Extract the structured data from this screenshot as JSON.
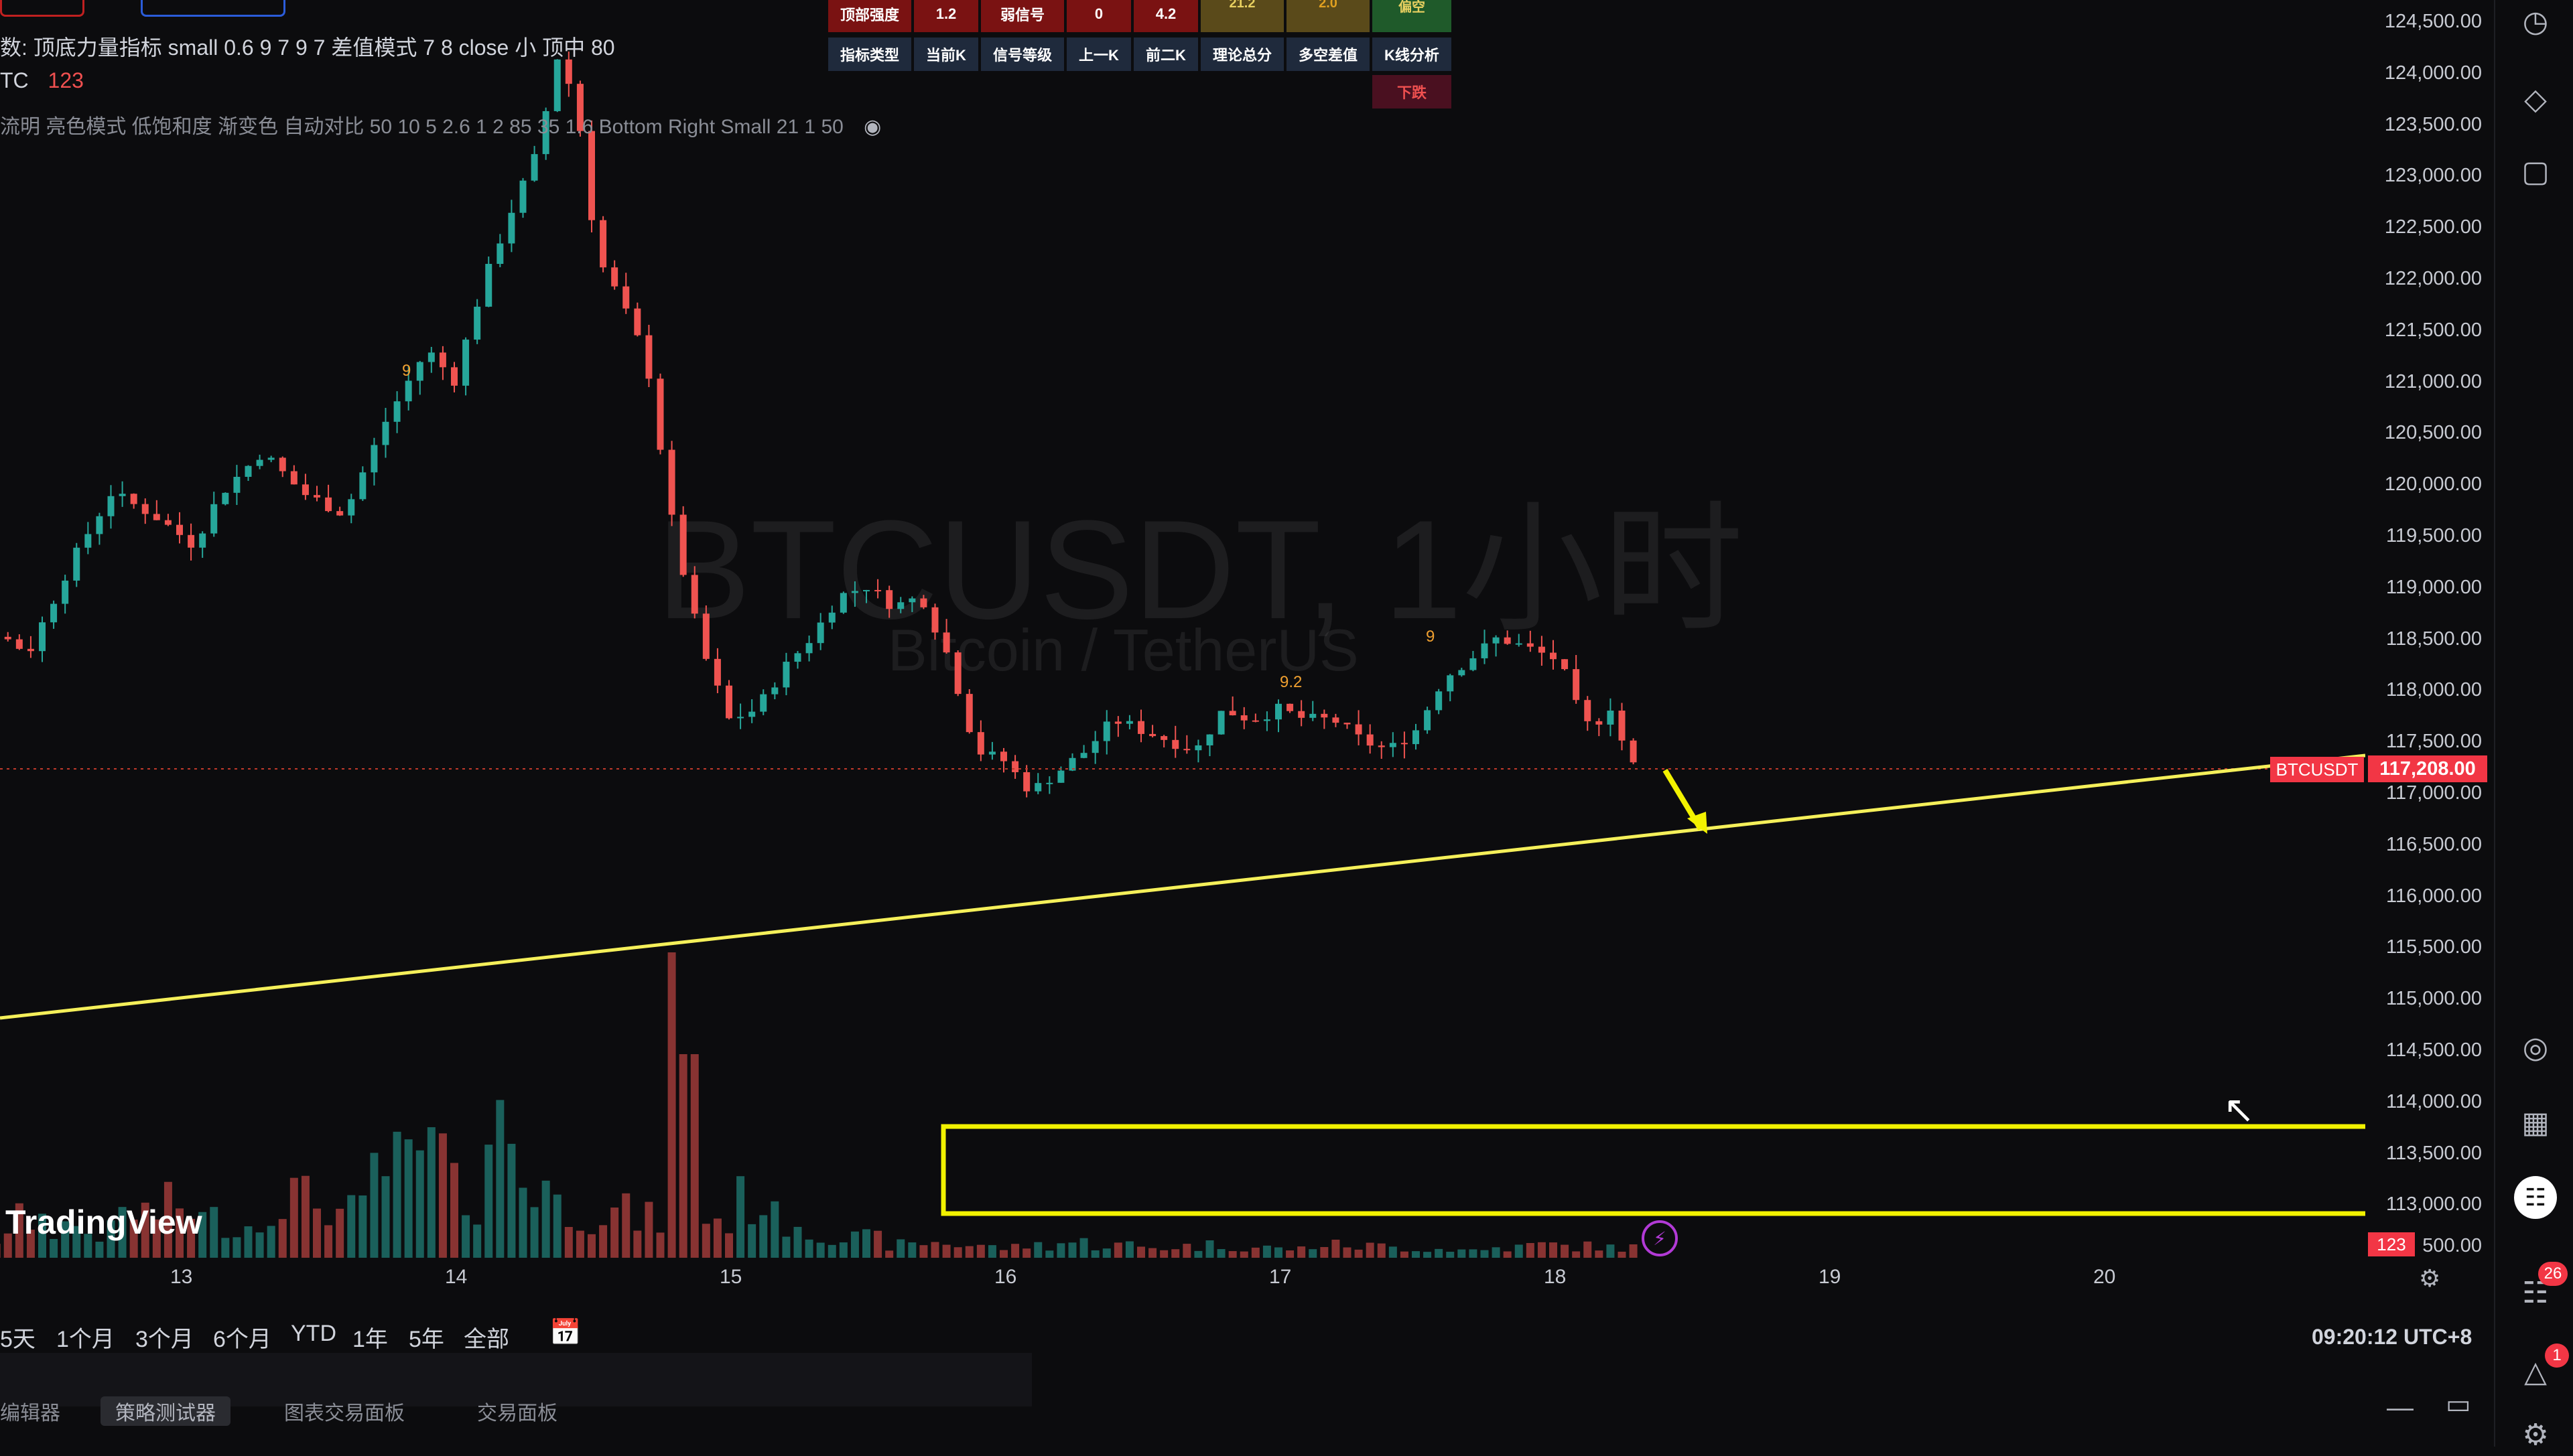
{
  "symbol": {
    "name": "BTCUSDT",
    "interval": "1小时",
    "description": "Bitcoin / TetherUS"
  },
  "info_lines": {
    "line1": "数: 顶底力量指标 small 0.6 9 7 9 7 差值模式 7 8 close 小 顶中 80",
    "line2_prefix": "TC",
    "line2_value": "123",
    "line3": "流明 亮色模式 低饱和度 渐变色 自动对比 50 10 5 2.6 1 2 85 35 1.6 Bottom Right Small 21 1 50"
  },
  "signal_table": {
    "row1": [
      "顶部强度",
      "1.2",
      "弱信号",
      "0",
      "4.2",
      "21.2",
      "2.0",
      "偏空"
    ],
    "row2": [
      "指标类型",
      "当前K",
      "信号等级",
      "上一K",
      "前二K",
      "理论总分",
      "多空差值",
      "K线分析"
    ],
    "row3": [
      "下跌"
    ]
  },
  "price_scale": {
    "ticks": [
      "124,500.00",
      "124,000.00",
      "123,500.00",
      "123,000.00",
      "122,500.00",
      "122,000.00",
      "121,500.00",
      "121,000.00",
      "120,500.00",
      "120,000.00",
      "119,500.00",
      "119,000.00",
      "118,500.00",
      "118,000.00",
      "117,500.00",
      "117,000.00",
      "116,500.00",
      "116,000.00",
      "115,500.00",
      "115,000.00",
      "114,500.00",
      "114,000.00",
      "113,500.00",
      "113,000.00",
      "500.00"
    ],
    "current_label": "BTCUSDT",
    "current_price": "117,208.00",
    "volume_label": "123"
  },
  "time_axis": [
    "13",
    "14",
    "15",
    "16",
    "17",
    "18",
    "19",
    "20"
  ],
  "candle_labels": [
    "9",
    "9.2",
    "9"
  ],
  "branding": "TradingView",
  "range_buttons": [
    "5天",
    "1个月",
    "3个月",
    "6个月",
    "YTD",
    "1年",
    "5年",
    "全部"
  ],
  "clock": "09:20:12 UTC+8",
  "bottom_tabs": [
    "编辑器",
    "策略测试器",
    "图表交易面板",
    "交易面板"
  ],
  "badges": {
    "signals": "26",
    "alerts": "1"
  },
  "colors": {
    "up": "#26a69a",
    "down": "#ef5350",
    "trendline": "#f5f05a",
    "annotation": "#f2f200",
    "price_tag": "#f23645"
  },
  "chart_data": {
    "type": "candlestick",
    "title": "BTCUSDT, 1小时",
    "subtitle": "Bitcoin / TetherUS",
    "x_labels": [
      "13",
      "14",
      "15",
      "16",
      "17",
      "18",
      "19",
      "20"
    ],
    "ylim": [
      112600,
      124800
    ],
    "last_price": 117208,
    "price_path": [
      [
        12.0,
        118900
      ],
      [
        12.15,
        118700
      ],
      [
        12.3,
        118600
      ],
      [
        12.45,
        118350
      ],
      [
        12.6,
        119200
      ],
      [
        12.75,
        119900
      ],
      [
        12.9,
        119700
      ],
      [
        13.05,
        119400
      ],
      [
        13.15,
        119900
      ],
      [
        13.3,
        120300
      ],
      [
        13.45,
        119900
      ],
      [
        13.6,
        119700
      ],
      [
        13.75,
        120600
      ],
      [
        13.9,
        121300
      ],
      [
        14.0,
        121000
      ],
      [
        14.1,
        121900
      ],
      [
        14.2,
        122600
      ],
      [
        14.3,
        123200
      ],
      [
        14.38,
        124200
      ],
      [
        14.45,
        123600
      ],
      [
        14.52,
        122200
      ],
      [
        14.6,
        121800
      ],
      [
        14.7,
        121200
      ],
      [
        14.8,
        119500
      ],
      [
        14.9,
        118400
      ],
      [
        15.0,
        117700
      ],
      [
        15.1,
        117800
      ],
      [
        15.2,
        118200
      ],
      [
        15.3,
        118500
      ],
      [
        15.4,
        118900
      ],
      [
        15.5,
        119000
      ],
      [
        15.6,
        118800
      ],
      [
        15.7,
        118900
      ],
      [
        15.8,
        118300
      ],
      [
        15.9,
        117400
      ],
      [
        16.0,
        117300
      ],
      [
        16.1,
        117000
      ],
      [
        16.2,
        117200
      ],
      [
        16.3,
        117400
      ],
      [
        16.4,
        117700
      ],
      [
        16.5,
        117600
      ],
      [
        16.6,
        117500
      ],
      [
        16.7,
        117400
      ],
      [
        16.8,
        117800
      ],
      [
        16.9,
        117700
      ],
      [
        17.0,
        117800
      ],
      [
        17.1,
        117700
      ],
      [
        17.2,
        117700
      ],
      [
        17.3,
        117500
      ],
      [
        17.4,
        117400
      ],
      [
        17.5,
        117600
      ],
      [
        17.6,
        118100
      ],
      [
        17.7,
        118300
      ],
      [
        17.8,
        118500
      ],
      [
        17.9,
        118400
      ],
      [
        18.0,
        118300
      ],
      [
        18.05,
        118100
      ],
      [
        18.1,
        117700
      ],
      [
        18.15,
        117600
      ],
      [
        18.2,
        117900
      ],
      [
        18.25,
        117500
      ],
      [
        18.3,
        117208
      ]
    ],
    "volume_profile": [
      0.1,
      0.2,
      0.15,
      0.3,
      0.25,
      0.2,
      0.35,
      0.4,
      0.3,
      0.25,
      0.5,
      0.45,
      0.35,
      0.7,
      0.8,
      0.5,
      1.0,
      0.6,
      0.4,
      0.35,
      0.3,
      0.25,
      0.3,
      0.45,
      0.3,
      0.2,
      0.15,
      0.1,
      0.12,
      0.1,
      0.08,
      0.1,
      0.12,
      0.1,
      0.08,
      0.09,
      0.1,
      0.08,
      0.07,
      0.1,
      0.09,
      0.08,
      0.07,
      0.06,
      0.08,
      0.1,
      0.09,
      0.08
    ],
    "trendline": {
      "from": [
        "12.0",
        115000
      ],
      "to": [
        "20.9",
        117500
      ]
    }
  }
}
